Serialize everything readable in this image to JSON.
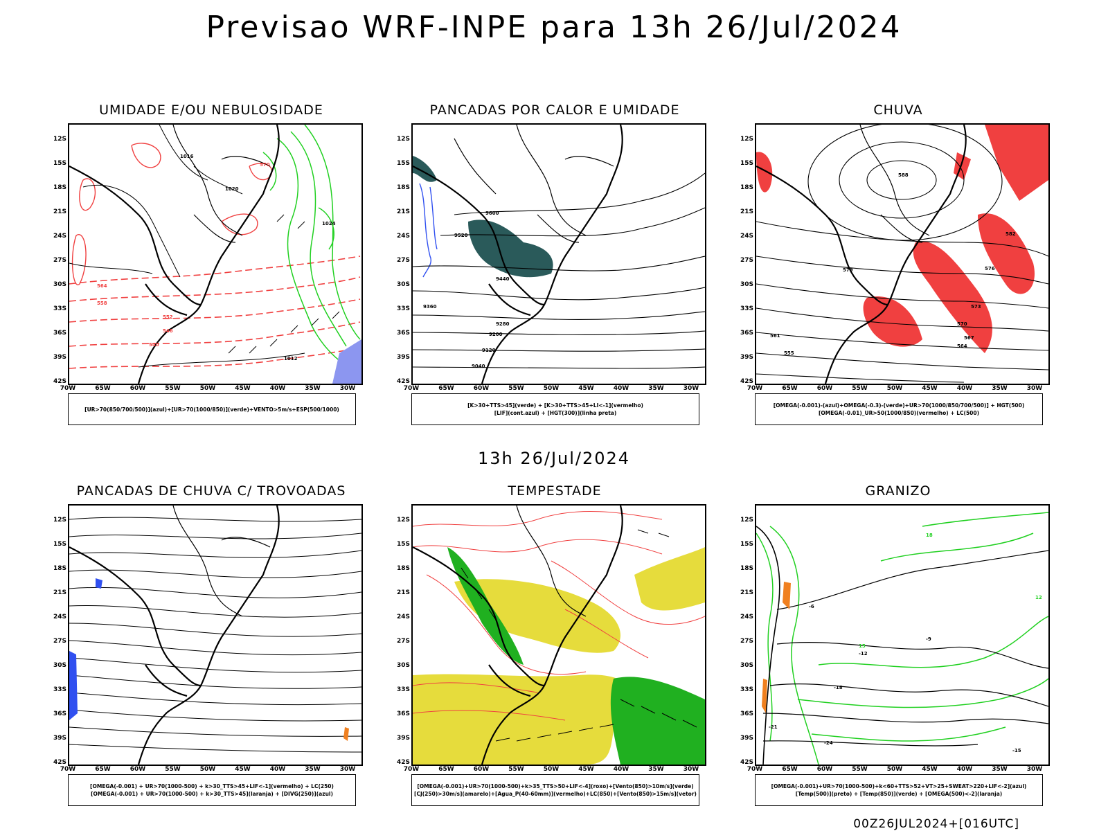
{
  "title": "Previsao WRF-INPE  para 13h 26/Jul/2024",
  "subtitle": "13h 26/Jul/2024",
  "footer": "00Z26JUL2024+[016UTC]",
  "axes": {
    "lat": [
      "12S",
      "15S",
      "18S",
      "21S",
      "24S",
      "27S",
      "30S",
      "33S",
      "36S",
      "39S",
      "42S"
    ],
    "lon": [
      "70W",
      "65W",
      "60W",
      "55W",
      "50W",
      "45W",
      "40W",
      "35W",
      "30W"
    ]
  },
  "panels": [
    {
      "title": "UMIDADE E/OU NEBULOSIDADE",
      "legend": [
        "[UR>70(850/700/500)](azul)+[UR>70(1000/850)](verde)+VENTO>5m/s+ESP(500/1000)"
      ],
      "contour_labels": [
        "1016",
        "1020",
        "1024",
        "1012",
        "570",
        "564",
        "558",
        "552",
        "546",
        "540"
      ]
    },
    {
      "title": "PANCADAS POR CALOR E UMIDADE",
      "legend": [
        "[K>30+TTS>45](verde) + [K>30+TTS>45+LI<-1](vermelho)",
        "[LIF](cont.azul) + [HGT(300)](linha preta)"
      ],
      "contour_labels": [
        "9600",
        "9520",
        "9440",
        "9360",
        "9280",
        "9200",
        "9120",
        "9040"
      ]
    },
    {
      "title": "CHUVA",
      "legend": [
        "[OMEGA(-0.001)-(azul)+OMEGA(-0.3)-(verde)+UR>70(1000/850/700/500)] + HGT(500)",
        "[OMEGA(-0.01)_UR>50(1000/850)(vermelho) + LC(500)"
      ],
      "contour_labels": [
        "588",
        "582",
        "579",
        "576",
        "573",
        "570",
        "567",
        "564",
        "561",
        "555"
      ]
    },
    {
      "title": "PANCADAS DE CHUVA C/ TROVOADAS",
      "legend": [
        "[OMEGA(-0.001) + UR>70(1000-500) + k>30_TTS>45+LIF<-1](vermelho) + LC(250)",
        "[OMEGA(-0.001) + UR>70(1000-500) + k>30_TTS>45](laranja) + [DIVG(250)](azul)"
      ],
      "contour_labels": []
    },
    {
      "title": "TEMPESTADE",
      "legend": [
        "[OMEGA(-0.001)+UR>70(1000-500)+k>35_TTS>50+LIF<-4](roxo)+[Vento(850)>10m/s](verde)",
        "[CJ(250)>30m/s](amarelo)+[Agua_P(40-60mm)](vermelho)+LC(850)+[Vento(850)>15m/s](vetor)"
      ],
      "contour_labels": []
    },
    {
      "title": "GRANIZO",
      "legend": [
        "[OMEGA(-0.001)+UR>70(1000-500)+k<60+TTS>52+VT>25+SWEAT>220+LIF<-2](azul)",
        "[Temp(500)](preto) + [Temp(850)](verde) + [OMEGA(500)<-2](laranja)"
      ],
      "contour_labels": [
        "-6",
        "-9",
        "-12",
        "-15",
        "-18",
        "-21",
        "-24",
        "15",
        "12",
        "18"
      ]
    }
  ],
  "colors": {
    "red": "#f04040",
    "green": "#20d020",
    "blue": "#3050f0",
    "yellow": "#e6dc3c",
    "teal": "#2a5a5a",
    "orange": "#f08020",
    "contour": "#000000"
  }
}
